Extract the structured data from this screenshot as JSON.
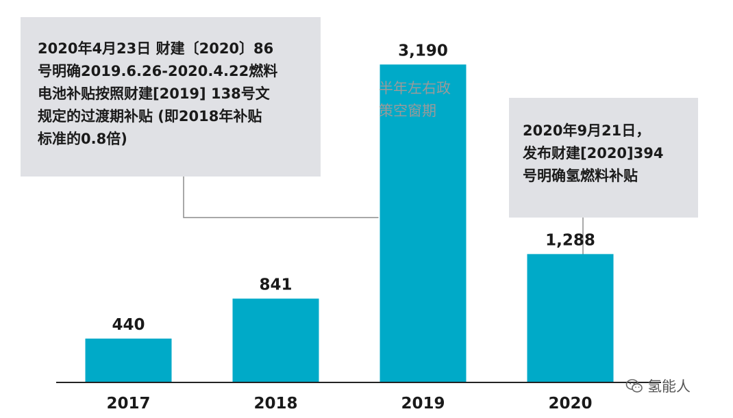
{
  "colors": {
    "bar": "#00aac8",
    "axis": "#222222",
    "callout_bg": "#e0e1e5",
    "connector": "#8c8c8c",
    "note_text": "#9a9a9a"
  },
  "chart_data": {
    "type": "bar",
    "title": "",
    "xlabel": "",
    "ylabel": "",
    "categories": [
      "2017",
      "2018",
      "2019",
      "2020"
    ],
    "values": [
      440,
      841,
      3190,
      1288
    ],
    "value_labels": [
      "440",
      "841",
      "3,190",
      "1,288"
    ],
    "ylim": [
      0,
      3700
    ],
    "grid": false,
    "annotations": [
      {
        "target": "2019",
        "lines": [
          "2020年4月23日 财建〔2020〕86",
          "号明确2019.6.26-2020.4.22燃料",
          "电池补贴按照财建[2019] 138号文",
          "规定的过渡期补贴 (即2018年补贴",
          "标准的0.8倍)"
        ]
      },
      {
        "target": "2019",
        "lines": [
          "半年左右政",
          "策空窗期"
        ]
      },
      {
        "target": "2020",
        "lines": [
          "2020年9月21日，",
          "发布财建[2020]394",
          "号明确氢燃料补贴"
        ]
      }
    ]
  },
  "watermark": {
    "icon": "wechat-icon",
    "text": "氢能人"
  }
}
